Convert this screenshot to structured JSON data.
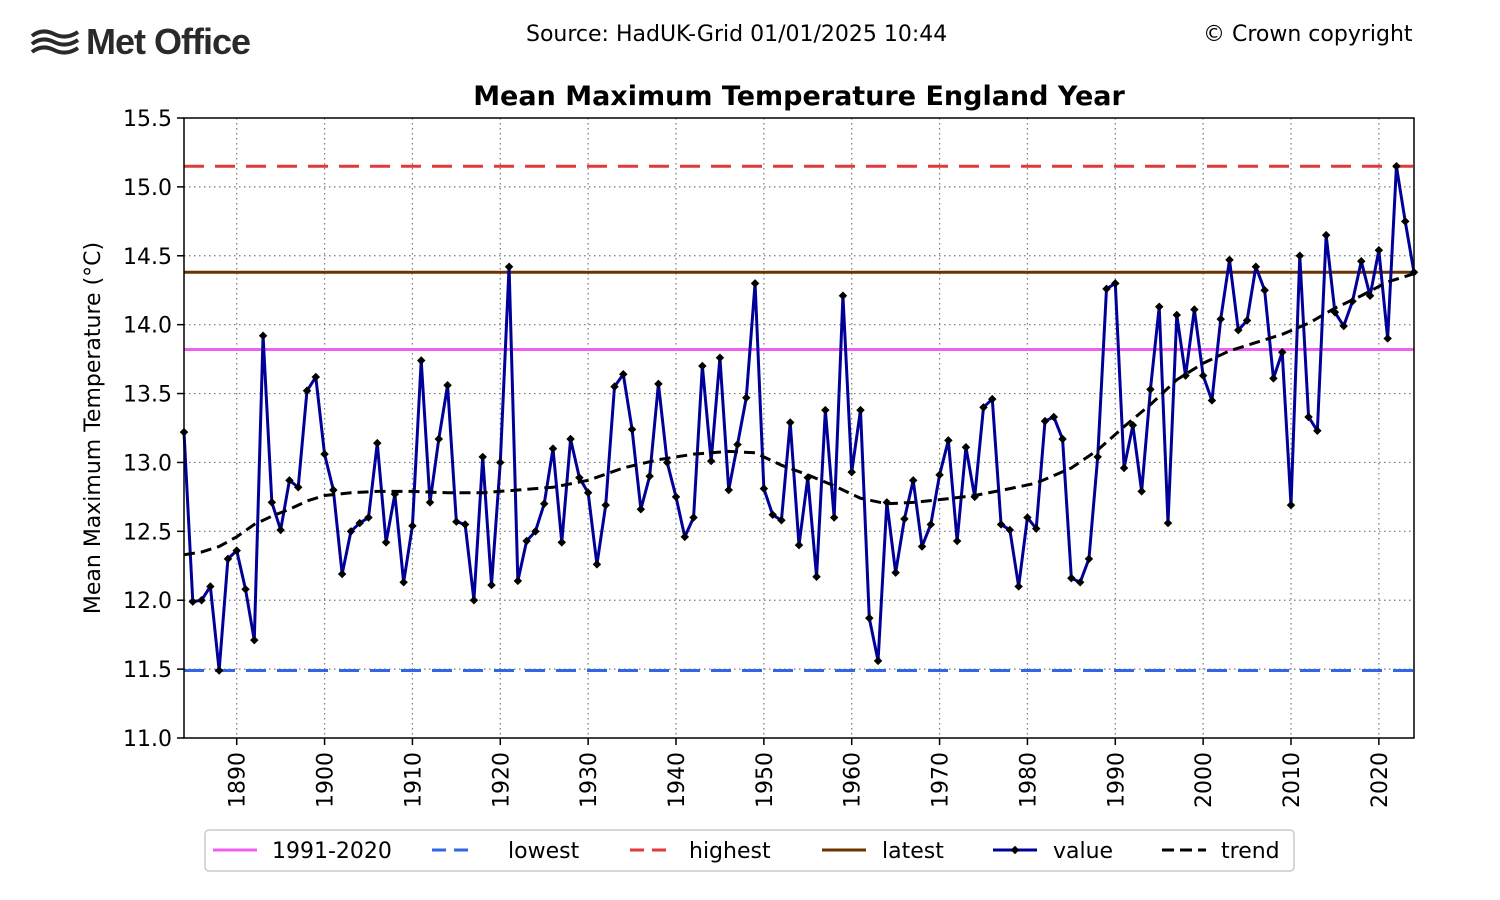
{
  "header": {
    "logo_text": "Met Office",
    "source": "Source: HadUK-Grid 01/01/2025 10:44",
    "copyright": "© Crown copyright"
  },
  "chart_data": {
    "type": "line",
    "title": "Mean Maximum Temperature England Year",
    "ylabel": "Mean Maximum Temperature (°C)",
    "xlabel": "",
    "xlim": [
      1884,
      2024
    ],
    "ylim": [
      11.0,
      15.5
    ],
    "x_ticks": [
      1890,
      1900,
      1910,
      1920,
      1930,
      1940,
      1950,
      1960,
      1970,
      1980,
      1990,
      2000,
      2010,
      2020
    ],
    "y_ticks": [
      "11.0",
      "11.5",
      "12.0",
      "12.5",
      "13.0",
      "13.5",
      "14.0",
      "14.5",
      "15.0",
      "15.5"
    ],
    "grid": true,
    "legend_position": "bottom",
    "reference_lines": {
      "average_1991_2020": 13.82,
      "lowest": 11.49,
      "highest": 15.15,
      "latest": 14.38
    },
    "colors": {
      "average": "#f060f0",
      "lowest": "#3366e6",
      "highest": "#e03a3a",
      "latest": "#6b3300",
      "value": "#000099",
      "trend": "#000000"
    },
    "legend": [
      "1991-2020",
      "lowest",
      "highest",
      "latest",
      "value",
      "trend"
    ],
    "series": [
      {
        "name": "value",
        "start_year": 1884,
        "values": [
          13.22,
          11.99,
          12.0,
          12.1,
          11.49,
          12.3,
          12.36,
          12.08,
          11.71,
          13.92,
          12.71,
          12.51,
          12.87,
          12.82,
          13.52,
          13.62,
          13.06,
          12.8,
          12.19,
          12.5,
          12.56,
          12.6,
          13.14,
          12.42,
          12.77,
          12.13,
          12.54,
          13.74,
          12.71,
          13.17,
          13.56,
          12.57,
          12.55,
          12.0,
          13.04,
          12.11,
          13.0,
          14.42,
          12.14,
          12.43,
          12.5,
          12.7,
          13.1,
          12.42,
          13.17,
          12.89,
          12.78,
          12.26,
          12.69,
          13.55,
          13.64,
          13.24,
          12.66,
          12.9,
          13.57,
          13.0,
          12.75,
          12.46,
          12.6,
          13.7,
          13.01,
          13.76,
          12.8,
          13.13,
          13.47,
          14.3,
          12.81,
          12.62,
          12.58,
          13.29,
          12.4,
          12.89,
          12.17,
          13.38,
          12.6,
          14.21,
          12.93,
          13.38,
          11.87,
          11.56,
          12.71,
          12.2,
          12.59,
          12.87,
          12.39,
          12.55,
          12.91,
          13.16,
          12.43,
          13.11,
          12.75,
          13.4,
          13.46,
          12.55,
          12.51,
          12.1,
          12.6,
          12.52,
          13.3,
          13.33,
          13.17,
          12.16,
          12.13,
          12.3,
          13.04,
          14.26,
          14.3,
          12.96,
          13.27,
          12.79,
          13.53,
          14.13,
          12.56,
          14.07,
          13.63,
          14.11,
          13.63,
          13.45,
          14.04,
          14.47,
          13.96,
          14.03,
          14.42,
          14.25,
          13.61,
          13.8,
          12.69,
          14.5,
          13.33,
          13.23,
          14.65,
          14.09,
          13.99,
          14.17,
          14.46,
          14.21,
          14.54,
          13.9,
          15.15,
          14.75,
          14.38
        ]
      },
      {
        "name": "trend",
        "points": [
          [
            1884,
            12.33
          ],
          [
            1886,
            12.35
          ],
          [
            1888,
            12.39
          ],
          [
            1890,
            12.46
          ],
          [
            1892,
            12.55
          ],
          [
            1894,
            12.61
          ],
          [
            1896,
            12.66
          ],
          [
            1898,
            12.72
          ],
          [
            1900,
            12.76
          ],
          [
            1903,
            12.78
          ],
          [
            1906,
            12.79
          ],
          [
            1910,
            12.79
          ],
          [
            1914,
            12.78
          ],
          [
            1918,
            12.78
          ],
          [
            1922,
            12.8
          ],
          [
            1926,
            12.82
          ],
          [
            1930,
            12.87
          ],
          [
            1934,
            12.96
          ],
          [
            1938,
            13.02
          ],
          [
            1942,
            13.06
          ],
          [
            1946,
            13.08
          ],
          [
            1949,
            13.07
          ],
          [
            1952,
            12.98
          ],
          [
            1955,
            12.91
          ],
          [
            1958,
            12.83
          ],
          [
            1961,
            12.74
          ],
          [
            1964,
            12.7
          ],
          [
            1967,
            12.71
          ],
          [
            1970,
            12.73
          ],
          [
            1974,
            12.76
          ],
          [
            1978,
            12.81
          ],
          [
            1981,
            12.85
          ],
          [
            1985,
            12.96
          ],
          [
            1988,
            13.09
          ],
          [
            1991,
            13.26
          ],
          [
            1994,
            13.42
          ],
          [
            1997,
            13.6
          ],
          [
            2000,
            13.72
          ],
          [
            2003,
            13.81
          ],
          [
            2006,
            13.87
          ],
          [
            2009,
            13.93
          ],
          [
            2012,
            14.01
          ],
          [
            2015,
            14.12
          ],
          [
            2018,
            14.21
          ],
          [
            2021,
            14.31
          ],
          [
            2024,
            14.37
          ]
        ]
      }
    ]
  }
}
